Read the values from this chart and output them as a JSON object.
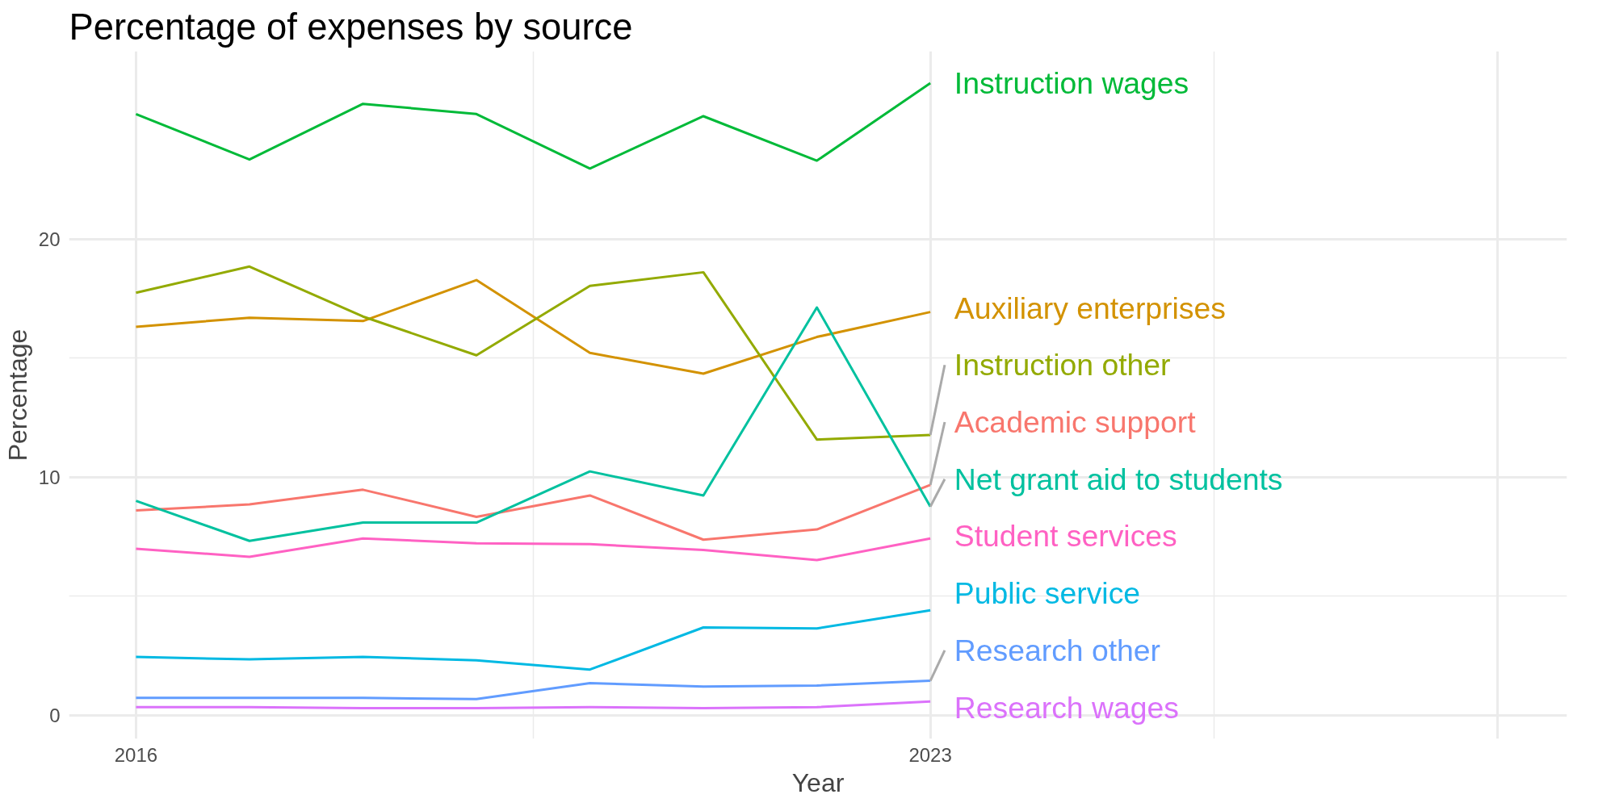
{
  "chart_data": {
    "type": "line",
    "title": "Percentage of expenses by source",
    "xlabel": "Year",
    "ylabel": "Percentage",
    "x": [
      2016,
      2017,
      2018,
      2019,
      2020,
      2021,
      2022,
      2023
    ],
    "xlim": [
      2015.41,
      2028.61
    ],
    "xticks": [
      2016,
      2023,
      {
        "value": 2028,
        "label": null
      }
    ],
    "ylim": [
      -1,
      27.9
    ],
    "yticks": [
      0,
      10,
      20
    ],
    "grid": true,
    "marker": "none",
    "line_style": "solid",
    "series": [
      {
        "name": "Academic support",
        "color": "#f8766d",
        "values": [
          8.6,
          8.85,
          9.47,
          8.33,
          9.23,
          7.37,
          7.8,
          9.67
        ]
      },
      {
        "name": "Auxiliary enterprises",
        "color": "#d39200",
        "values": [
          16.32,
          16.7,
          16.56,
          18.28,
          15.22,
          14.35,
          15.89,
          16.94
        ]
      },
      {
        "name": "Instruction other",
        "color": "#93aa00",
        "values": [
          17.75,
          18.85,
          16.75,
          15.12,
          18.04,
          18.61,
          11.58,
          11.77
        ]
      },
      {
        "name": "Instruction wages",
        "color": "#00ba38",
        "values": [
          25.26,
          23.35,
          25.69,
          25.26,
          22.97,
          25.17,
          23.3,
          26.56
        ]
      },
      {
        "name": "Net grant aid to students",
        "color": "#00c19f",
        "values": [
          9.0,
          7.32,
          8.09,
          8.09,
          10.24,
          9.23,
          17.13,
          8.76
        ]
      },
      {
        "name": "Public service",
        "color": "#00b9e3",
        "values": [
          2.44,
          2.34,
          2.44,
          2.3,
          1.91,
          3.68,
          3.64,
          4.4
        ]
      },
      {
        "name": "Research other",
        "color": "#619cff",
        "values": [
          0.72,
          0.72,
          0.72,
          0.67,
          1.34,
          1.2,
          1.24,
          1.44
        ]
      },
      {
        "name": "Research wages",
        "color": "#db72fb",
        "values": [
          0.33,
          0.33,
          0.29,
          0.29,
          0.33,
          0.29,
          0.33,
          0.57
        ]
      },
      {
        "name": "Student services",
        "color": "#ff61c3",
        "values": [
          6.99,
          6.65,
          7.42,
          7.22,
          7.18,
          6.94,
          6.51,
          7.42
        ]
      }
    ]
  }
}
